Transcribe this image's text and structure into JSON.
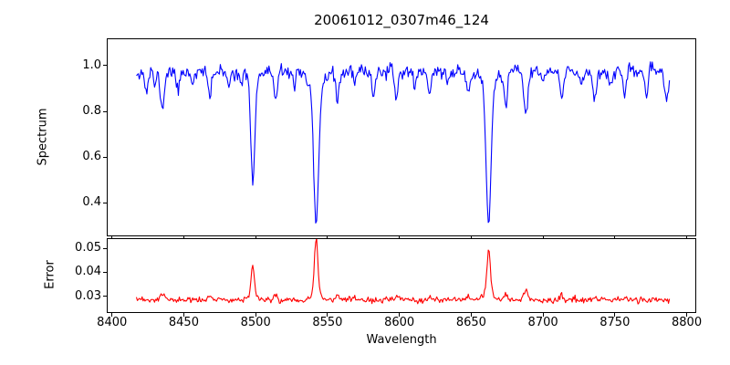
{
  "title": "20061012_0307m46_124",
  "colors": {
    "spectrum_line": "#0000ff",
    "error_line": "#ff0000",
    "axis": "#000000",
    "background": "#ffffff"
  },
  "chart_data": [
    {
      "type": "line",
      "panel": "spectrum",
      "title": "20061012_0307m46_124",
      "ylabel": "Spectrum",
      "color": "#0000ff",
      "xlim": [
        8397,
        8806
      ],
      "ylim": [
        0.258,
        1.115
      ],
      "yticks": [
        0.4,
        0.6,
        0.8,
        1.0
      ],
      "ytick_labels": [
        "0.4",
        "0.6",
        "0.8",
        "1.0"
      ],
      "grid": false,
      "legend": "none",
      "x_range": [
        8417,
        8788
      ],
      "n_points": 560,
      "continuum": 0.972,
      "noise_amp": 0.014,
      "seed": 11,
      "absorption_lines": [
        [
          8424,
          0.09,
          1.1
        ],
        [
          8430,
          0.06,
          0.9
        ],
        [
          8435,
          0.17,
          1.3
        ],
        [
          8446,
          0.09,
          1.0
        ],
        [
          8456,
          0.05,
          0.9
        ],
        [
          8468,
          0.11,
          1.2
        ],
        [
          8481,
          0.07,
          1.0
        ],
        [
          8490,
          0.05,
          0.9
        ],
        [
          8498.02,
          0.45,
          1.3
        ],
        [
          8498.02,
          0.05,
          3.5
        ],
        [
          8514,
          0.13,
          1.2
        ],
        [
          8527,
          0.06,
          1.0
        ],
        [
          8536,
          0.05,
          0.9
        ],
        [
          8542.09,
          0.62,
          1.7
        ],
        [
          8542.09,
          0.07,
          4.5
        ],
        [
          8557,
          0.13,
          1.2
        ],
        [
          8569,
          0.05,
          0.9
        ],
        [
          8582,
          0.1,
          1.1
        ],
        [
          8598,
          0.11,
          1.2
        ],
        [
          8611,
          0.06,
          0.9
        ],
        [
          8621,
          0.09,
          1.1
        ],
        [
          8634,
          0.05,
          0.9
        ],
        [
          8648,
          0.1,
          1.1
        ],
        [
          8662.14,
          0.62,
          1.7
        ],
        [
          8662.14,
          0.06,
          4.5
        ],
        [
          8674,
          0.15,
          1.2
        ],
        [
          8688,
          0.18,
          1.4
        ],
        [
          8700,
          0.05,
          0.9
        ],
        [
          8713,
          0.12,
          1.2
        ],
        [
          8727,
          0.06,
          1.0
        ],
        [
          8736,
          0.12,
          1.2
        ],
        [
          8747,
          0.06,
          1.0
        ],
        [
          8757,
          0.1,
          1.1
        ],
        [
          8772,
          0.09,
          1.1
        ],
        [
          8786,
          0.12,
          1.3
        ]
      ]
    },
    {
      "type": "line",
      "panel": "error",
      "ylabel": "Error",
      "xlabel": "Wavelength",
      "color": "#ff0000",
      "xlim": [
        8397,
        8806
      ],
      "ylim": [
        0.0235,
        0.0538
      ],
      "yticks": [
        0.03,
        0.04,
        0.05
      ],
      "ytick_labels": [
        "0.03",
        "0.04",
        "0.05"
      ],
      "xticks": [
        8400,
        8450,
        8500,
        8550,
        8600,
        8650,
        8700,
        8750,
        8800
      ],
      "xtick_labels": [
        "8400",
        "8450",
        "8500",
        "8550",
        "8600",
        "8650",
        "8700",
        "8750",
        "8800"
      ],
      "grid": false,
      "legend": "none",
      "x_range": [
        8417,
        8788
      ],
      "n_points": 560,
      "baseline": 0.0285,
      "noise_amp": 0.0006,
      "seed": 23,
      "error_peaks": [
        [
          8435,
          0.0025,
          1.4
        ],
        [
          8468,
          0.0015,
          1.2
        ],
        [
          8498.02,
          0.013,
          1.1
        ],
        [
          8498.02,
          0.002,
          3.0
        ],
        [
          8514,
          0.002,
          1.2
        ],
        [
          8542.09,
          0.0225,
          1.2
        ],
        [
          8542.09,
          0.003,
          3.5
        ],
        [
          8557,
          0.002,
          1.2
        ],
        [
          8598,
          0.0015,
          1.2
        ],
        [
          8621,
          0.001,
          1.1
        ],
        [
          8648,
          0.001,
          1.1
        ],
        [
          8662.14,
          0.018,
          1.2
        ],
        [
          8662.14,
          0.0025,
          3.5
        ],
        [
          8674,
          0.0025,
          1.2
        ],
        [
          8688,
          0.004,
          1.4
        ],
        [
          8713,
          0.0015,
          1.2
        ],
        [
          8736,
          0.0015,
          1.2
        ],
        [
          8757,
          0.001,
          1.1
        ]
      ]
    }
  ]
}
